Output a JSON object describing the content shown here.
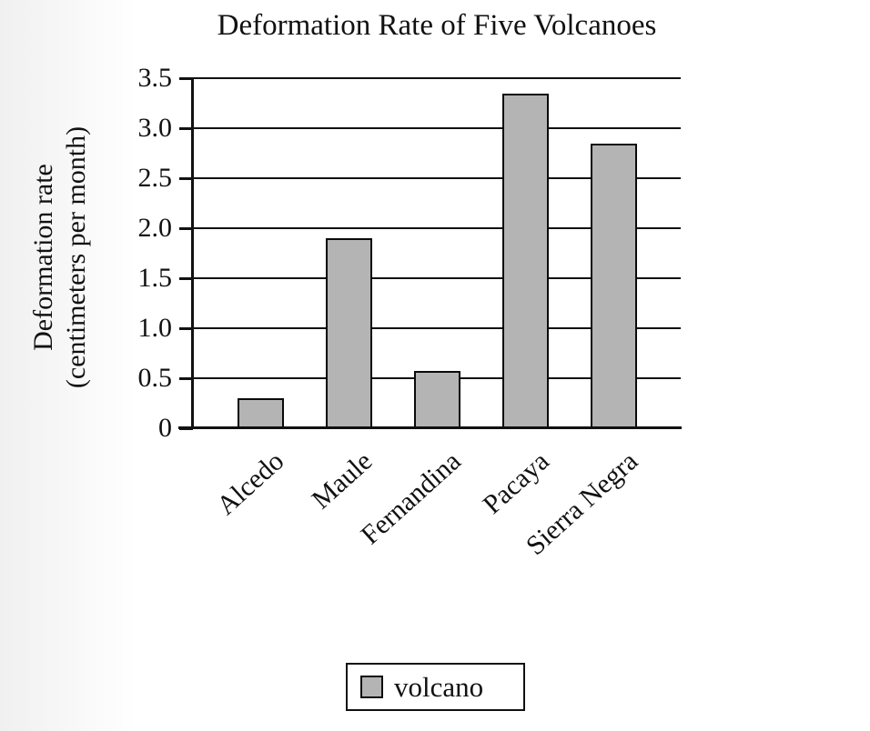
{
  "chart_data": {
    "type": "bar",
    "title": "Deformation Rate of Five Volcanoes",
    "categories": [
      "Alcedo",
      "Maule",
      "Fernandina",
      "Pacaya",
      "Sierra Negra"
    ],
    "values": [
      0.3,
      1.9,
      0.57,
      3.35,
      2.85
    ],
    "xlabel": "",
    "ylabel_line1": "Deformation rate",
    "ylabel_line2": "(centimeters per month)",
    "yticks": [
      "3.5",
      "3.0",
      "2.5",
      "2.0",
      "1.5",
      "1.0",
      "0.5",
      "0"
    ],
    "ylim": [
      0,
      3.5
    ],
    "ytick_step": 0.5,
    "grid": true,
    "legend": {
      "label": "volcano",
      "position": "bottom-center"
    },
    "colors": {
      "bar_fill": "#b4b4b4",
      "bar_border": "#0a0a0a",
      "axis": "#111111",
      "background": "#ffffff"
    }
  }
}
